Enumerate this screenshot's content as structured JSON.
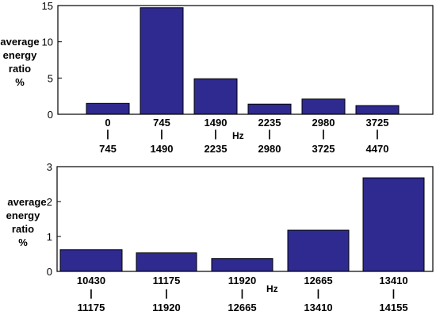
{
  "chart_data": [
    {
      "type": "bar",
      "ylabel": [
        "average",
        "energy",
        "ratio",
        "%"
      ],
      "xunit": "Hz",
      "ylim": [
        0,
        15
      ],
      "yticks": [
        "0",
        "5",
        "10",
        "15"
      ],
      "categories": [
        {
          "from": "0",
          "sep": "|",
          "to": "745"
        },
        {
          "from": "745",
          "sep": "|",
          "to": "1490"
        },
        {
          "from": "1490",
          "sep": "|",
          "to": "2235"
        },
        {
          "from": "2235",
          "sep": "|",
          "to": "2980"
        },
        {
          "from": "2980",
          "sep": "|",
          "to": "3725"
        },
        {
          "from": "3725",
          "sep": "|",
          "to": "4470"
        }
      ],
      "values": [
        1.5,
        14.7,
        4.9,
        1.4,
        2.1,
        1.2
      ],
      "bar_color": "#2e2a8f"
    },
    {
      "type": "bar",
      "ylabel": [
        "average",
        "energy",
        "ratio",
        "%"
      ],
      "xunit": "Hz",
      "ylim": [
        0,
        3
      ],
      "yticks": [
        "0",
        "1",
        "2",
        "3"
      ],
      "categories": [
        {
          "from": "10430",
          "sep": "|",
          "to": "11175"
        },
        {
          "from": "11175",
          "sep": "|",
          "to": "11920"
        },
        {
          "from": "11920",
          "sep": "|",
          "to": "12665"
        },
        {
          "from": "12665",
          "sep": "|",
          "to": "13410"
        },
        {
          "from": "13410",
          "sep": "|",
          "to": "14155"
        }
      ],
      "values": [
        0.62,
        0.53,
        0.37,
        1.18,
        2.68
      ],
      "bar_color": "#2e2a8f"
    }
  ]
}
